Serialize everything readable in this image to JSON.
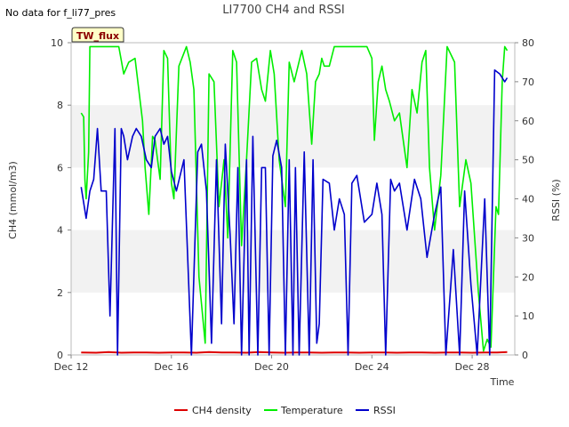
{
  "no_data_text": "No data for f_li77_pres",
  "badge_label": "TW_flux",
  "chart_data": {
    "type": "line",
    "title": "LI7700 CH4 and RSSI",
    "xlabel": "Time",
    "ylabel": "CH4 (mmol/m3)",
    "y2label": "RSSI (%)",
    "xlim": [
      12,
      29.7
    ],
    "ylim": [
      0,
      10
    ],
    "y2lim": [
      0,
      80
    ],
    "x_ticks": [
      12,
      16,
      20,
      24,
      28
    ],
    "x_tick_labels": [
      "Dec 12",
      "Dec 16",
      "Dec 20",
      "Dec 24",
      "Dec 28"
    ],
    "y_ticks": [
      0,
      2,
      4,
      6,
      8,
      10
    ],
    "y_tick_labels": [
      "0",
      "2",
      "4",
      "6",
      "8",
      "10"
    ],
    "y2_ticks": [
      0,
      10,
      20,
      30,
      40,
      50,
      60,
      70,
      80
    ],
    "y2_tick_labels": [
      "0",
      "10",
      "20",
      "30",
      "40",
      "50",
      "60",
      "70",
      "80"
    ],
    "bands": [
      [
        2,
        4
      ],
      [
        6,
        8
      ]
    ],
    "legend": [
      {
        "name": "CH4 density",
        "color": "#dd0000"
      },
      {
        "name": "Temperature",
        "color": "#00ee00"
      },
      {
        "name": "RSSI",
        "color": "#0000cc"
      }
    ],
    "series": [
      {
        "name": "CH4 density",
        "axis": "left",
        "color": "#dd0000",
        "x": [
          12.4,
          13,
          13.5,
          14,
          14.5,
          15,
          15.5,
          16,
          16.5,
          17,
          17.5,
          18,
          18.5,
          19,
          19.5,
          20,
          20.5,
          21,
          21.5,
          22,
          22.5,
          23,
          23.5,
          24,
          24.5,
          25,
          25.5,
          26,
          26.5,
          27,
          27.5,
          28,
          28.5,
          29,
          29.4
        ],
        "y": [
          0.08,
          0.07,
          0.09,
          0.07,
          0.08,
          0.08,
          0.07,
          0.08,
          0.08,
          0.07,
          0.09,
          0.08,
          0.08,
          0.07,
          0.09,
          0.08,
          0.07,
          0.08,
          0.08,
          0.07,
          0.08,
          0.08,
          0.07,
          0.08,
          0.08,
          0.07,
          0.08,
          0.08,
          0.07,
          0.08,
          0.08,
          0.07,
          0.08,
          0.08,
          0.09
        ]
      },
      {
        "name": "Temperature",
        "axis": "right",
        "color": "#00ee00",
        "x": [
          12.4,
          12.5,
          12.55,
          12.6,
          12.7,
          12.75,
          13.0,
          13.3,
          13.6,
          13.9,
          14.1,
          14.3,
          14.55,
          14.7,
          14.85,
          14.95,
          15.1,
          15.25,
          15.35,
          15.55,
          15.7,
          15.85,
          16.0,
          16.1,
          16.3,
          16.6,
          16.75,
          16.9,
          17.1,
          17.35,
          17.5,
          17.7,
          17.9,
          18.1,
          18.25,
          18.45,
          18.6,
          18.8,
          19.0,
          19.2,
          19.4,
          19.6,
          19.75,
          19.95,
          20.1,
          20.3,
          20.55,
          20.7,
          20.9,
          21.2,
          21.4,
          21.6,
          21.75,
          21.9,
          22.0,
          22.1,
          22.3,
          22.5,
          22.8,
          23.2,
          23.5,
          23.8,
          24.0,
          24.1,
          24.25,
          24.4,
          24.55,
          24.7,
          24.9,
          25.1,
          25.4,
          25.6,
          25.8,
          26.0,
          26.15,
          26.3,
          26.5,
          26.75,
          27.0,
          27.3,
          27.5,
          27.75,
          27.95,
          28.1,
          28.25,
          28.45,
          28.6,
          28.75,
          28.95,
          29.05,
          29.2,
          29.3,
          29.4
        ],
        "y": [
          62,
          61,
          45,
          40,
          52,
          79,
          79,
          79,
          79,
          79,
          72,
          75,
          76,
          68,
          60,
          48,
          36,
          56,
          55,
          45,
          78,
          76,
          44,
          40,
          74,
          79,
          75,
          68,
          20,
          3,
          72,
          70,
          38,
          50,
          30,
          78,
          75,
          28,
          50,
          75,
          76,
          68,
          65,
          78,
          72,
          50,
          38,
          75,
          70,
          78,
          72,
          54,
          70,
          72,
          76,
          74,
          74,
          79,
          79,
          79,
          79,
          79,
          76,
          55,
          70,
          74,
          68,
          65,
          60,
          62,
          48,
          68,
          62,
          75,
          78,
          48,
          32,
          46,
          79,
          75,
          38,
          50,
          44,
          30,
          16,
          1,
          4,
          2,
          38,
          36,
          70,
          79,
          78
        ]
      },
      {
        "name": "RSSI",
        "axis": "right",
        "color": "#0000cc",
        "x": [
          12.4,
          12.6,
          12.75,
          12.9,
          13.05,
          13.2,
          13.4,
          13.55,
          13.75,
          13.85,
          14.0,
          14.1,
          14.25,
          14.45,
          14.6,
          14.8,
          15.0,
          15.2,
          15.35,
          15.55,
          15.7,
          15.85,
          16.0,
          16.2,
          16.5,
          16.8,
          17.05,
          17.2,
          17.4,
          17.6,
          17.8,
          18.0,
          18.15,
          18.35,
          18.5,
          18.65,
          18.8,
          19.0,
          19.1,
          19.25,
          19.45,
          19.6,
          19.75,
          19.9,
          20.05,
          20.2,
          20.4,
          20.55,
          20.7,
          20.85,
          20.95,
          21.1,
          21.3,
          21.5,
          21.65,
          21.8,
          21.9,
          22.05,
          22.3,
          22.5,
          22.7,
          22.9,
          23.05,
          23.2,
          23.4,
          23.7,
          24.0,
          24.2,
          24.4,
          24.55,
          24.75,
          24.9,
          25.1,
          25.4,
          25.7,
          25.95,
          26.2,
          26.5,
          26.75,
          26.95,
          27.25,
          27.5,
          27.7,
          27.95,
          28.2,
          28.5,
          28.7,
          28.9,
          29.1,
          29.3,
          29.4
        ],
        "y": [
          43,
          35,
          42,
          45,
          58,
          42,
          42,
          10,
          58,
          0,
          58,
          56,
          50,
          56,
          58,
          56,
          50,
          48,
          56,
          58,
          54,
          56,
          47,
          42,
          50,
          0,
          52,
          54,
          42,
          3,
          50,
          8,
          54,
          30,
          8,
          48,
          0,
          50,
          0,
          56,
          0,
          48,
          48,
          0,
          51,
          55,
          48,
          0,
          50,
          0,
          48,
          0,
          52,
          0,
          50,
          3,
          8,
          45,
          44,
          32,
          40,
          36,
          0,
          44,
          46,
          34,
          36,
          44,
          36,
          0,
          45,
          42,
          44,
          32,
          45,
          40,
          25,
          36,
          43,
          0,
          27,
          0,
          42,
          18,
          0,
          40,
          0,
          73,
          72,
          70,
          71
        ]
      }
    ]
  }
}
